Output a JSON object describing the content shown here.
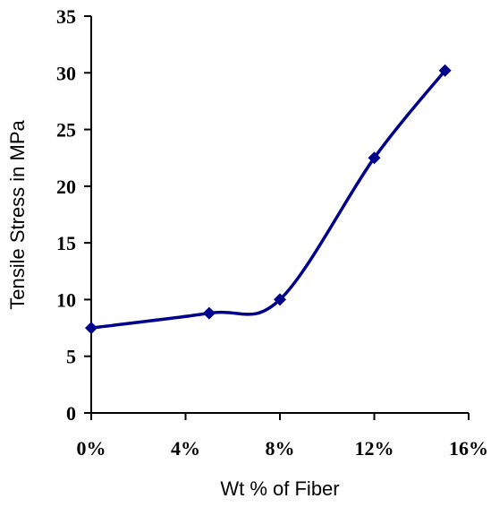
{
  "chart_data": {
    "type": "line",
    "title": "",
    "xlabel": "Wt % of Fiber",
    "ylabel": "Tensile Stress in MPa",
    "x_tick_labels": [
      "0%",
      "4%",
      "8%",
      "12%",
      "16%"
    ],
    "y_tick_labels": [
      "0",
      "5",
      "10",
      "15",
      "20",
      "25",
      "30",
      "35"
    ],
    "xlim": [
      0,
      16
    ],
    "ylim": [
      0,
      35
    ],
    "grid": false,
    "legend": "none",
    "series": [
      {
        "x": [
          0,
          5,
          8,
          12,
          15
        ],
        "values": [
          7.5,
          8.8,
          10.0,
          22.5,
          30.2
        ],
        "color": "#00008B",
        "marker": "diamond",
        "smooth": true
      }
    ]
  }
}
